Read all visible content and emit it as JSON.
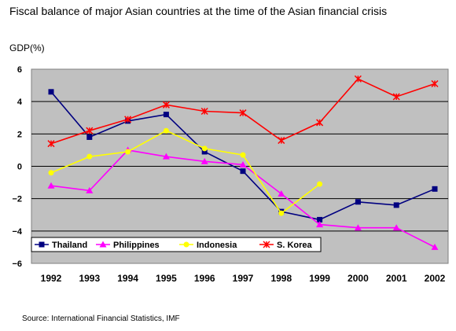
{
  "title": "Fiscal balance of major Asian countries at the time of the Asian financial crisis",
  "source": "Source: International Financial Statistics, IMF",
  "chart_data": {
    "type": "line",
    "title": "Fiscal balance of major Asian countries at the time of the Asian financial crisis",
    "ylabel": "GDP(%)",
    "xlabel": "",
    "x": [
      "1992",
      "1993",
      "1994",
      "1995",
      "1996",
      "1997",
      "1998",
      "1999",
      "2000",
      "2001",
      "2002"
    ],
    "ylim": [
      -6,
      6
    ],
    "yticks": [
      "6",
      "4",
      "2",
      "0",
      "−2",
      "−4",
      "−6"
    ],
    "grid": true,
    "legend_position": "bottom-left",
    "background": "#c0c0c0",
    "series": [
      {
        "name": "Thailand",
        "color": "#000080",
        "marker": "square",
        "values": [
          4.6,
          1.8,
          2.8,
          3.2,
          0.9,
          -0.3,
          -2.8,
          -3.3,
          -2.2,
          -2.4,
          -1.4
        ]
      },
      {
        "name": "Philippines",
        "color": "#ff00ff",
        "marker": "triangle",
        "values": [
          -1.2,
          -1.5,
          1.0,
          0.6,
          0.3,
          0.1,
          -1.7,
          -3.6,
          -3.8,
          -3.8,
          -5.0
        ]
      },
      {
        "name": "Indonesia",
        "color": "#ffff00",
        "marker": "circle",
        "values": [
          -0.4,
          0.6,
          0.9,
          2.2,
          1.1,
          0.7,
          -2.9,
          -1.1,
          null,
          null,
          null
        ]
      },
      {
        "name": "S. Korea",
        "color": "#ff0000",
        "marker": "x",
        "values": [
          1.4,
          2.2,
          2.9,
          3.8,
          3.4,
          3.3,
          1.6,
          2.7,
          5.4,
          4.3,
          5.1
        ]
      }
    ]
  }
}
